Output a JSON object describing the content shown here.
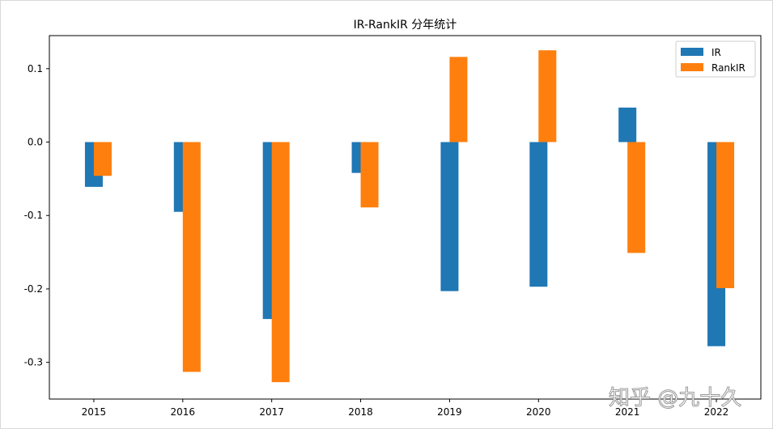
{
  "chart_data": {
    "type": "bar",
    "title": "IR-RankIR 分年统计",
    "xlabel": "",
    "ylabel": "",
    "categories": [
      "2015",
      "2016",
      "2017",
      "2018",
      "2019",
      "2020",
      "2021",
      "2022"
    ],
    "series": [
      {
        "name": "IR",
        "color": "#1f77b4",
        "values": [
          -0.061,
          -0.095,
          -0.241,
          -0.042,
          -0.203,
          -0.197,
          0.047,
          -0.278
        ]
      },
      {
        "name": "RankIR",
        "color": "#ff7f0e",
        "values": [
          -0.046,
          -0.313,
          -0.327,
          -0.089,
          0.116,
          0.125,
          -0.151,
          -0.199
        ]
      }
    ],
    "ylim": [
      -0.35,
      0.145
    ],
    "yticks": [
      0.1,
      0.0,
      -0.1,
      -0.2,
      -0.3
    ],
    "ytick_labels": [
      "0.1",
      "0.0",
      "-0.1",
      "-0.2",
      "-0.3"
    ],
    "legend_position": "top-right",
    "grid": false
  },
  "watermark": {
    "text": "知乎 @九十久"
  }
}
